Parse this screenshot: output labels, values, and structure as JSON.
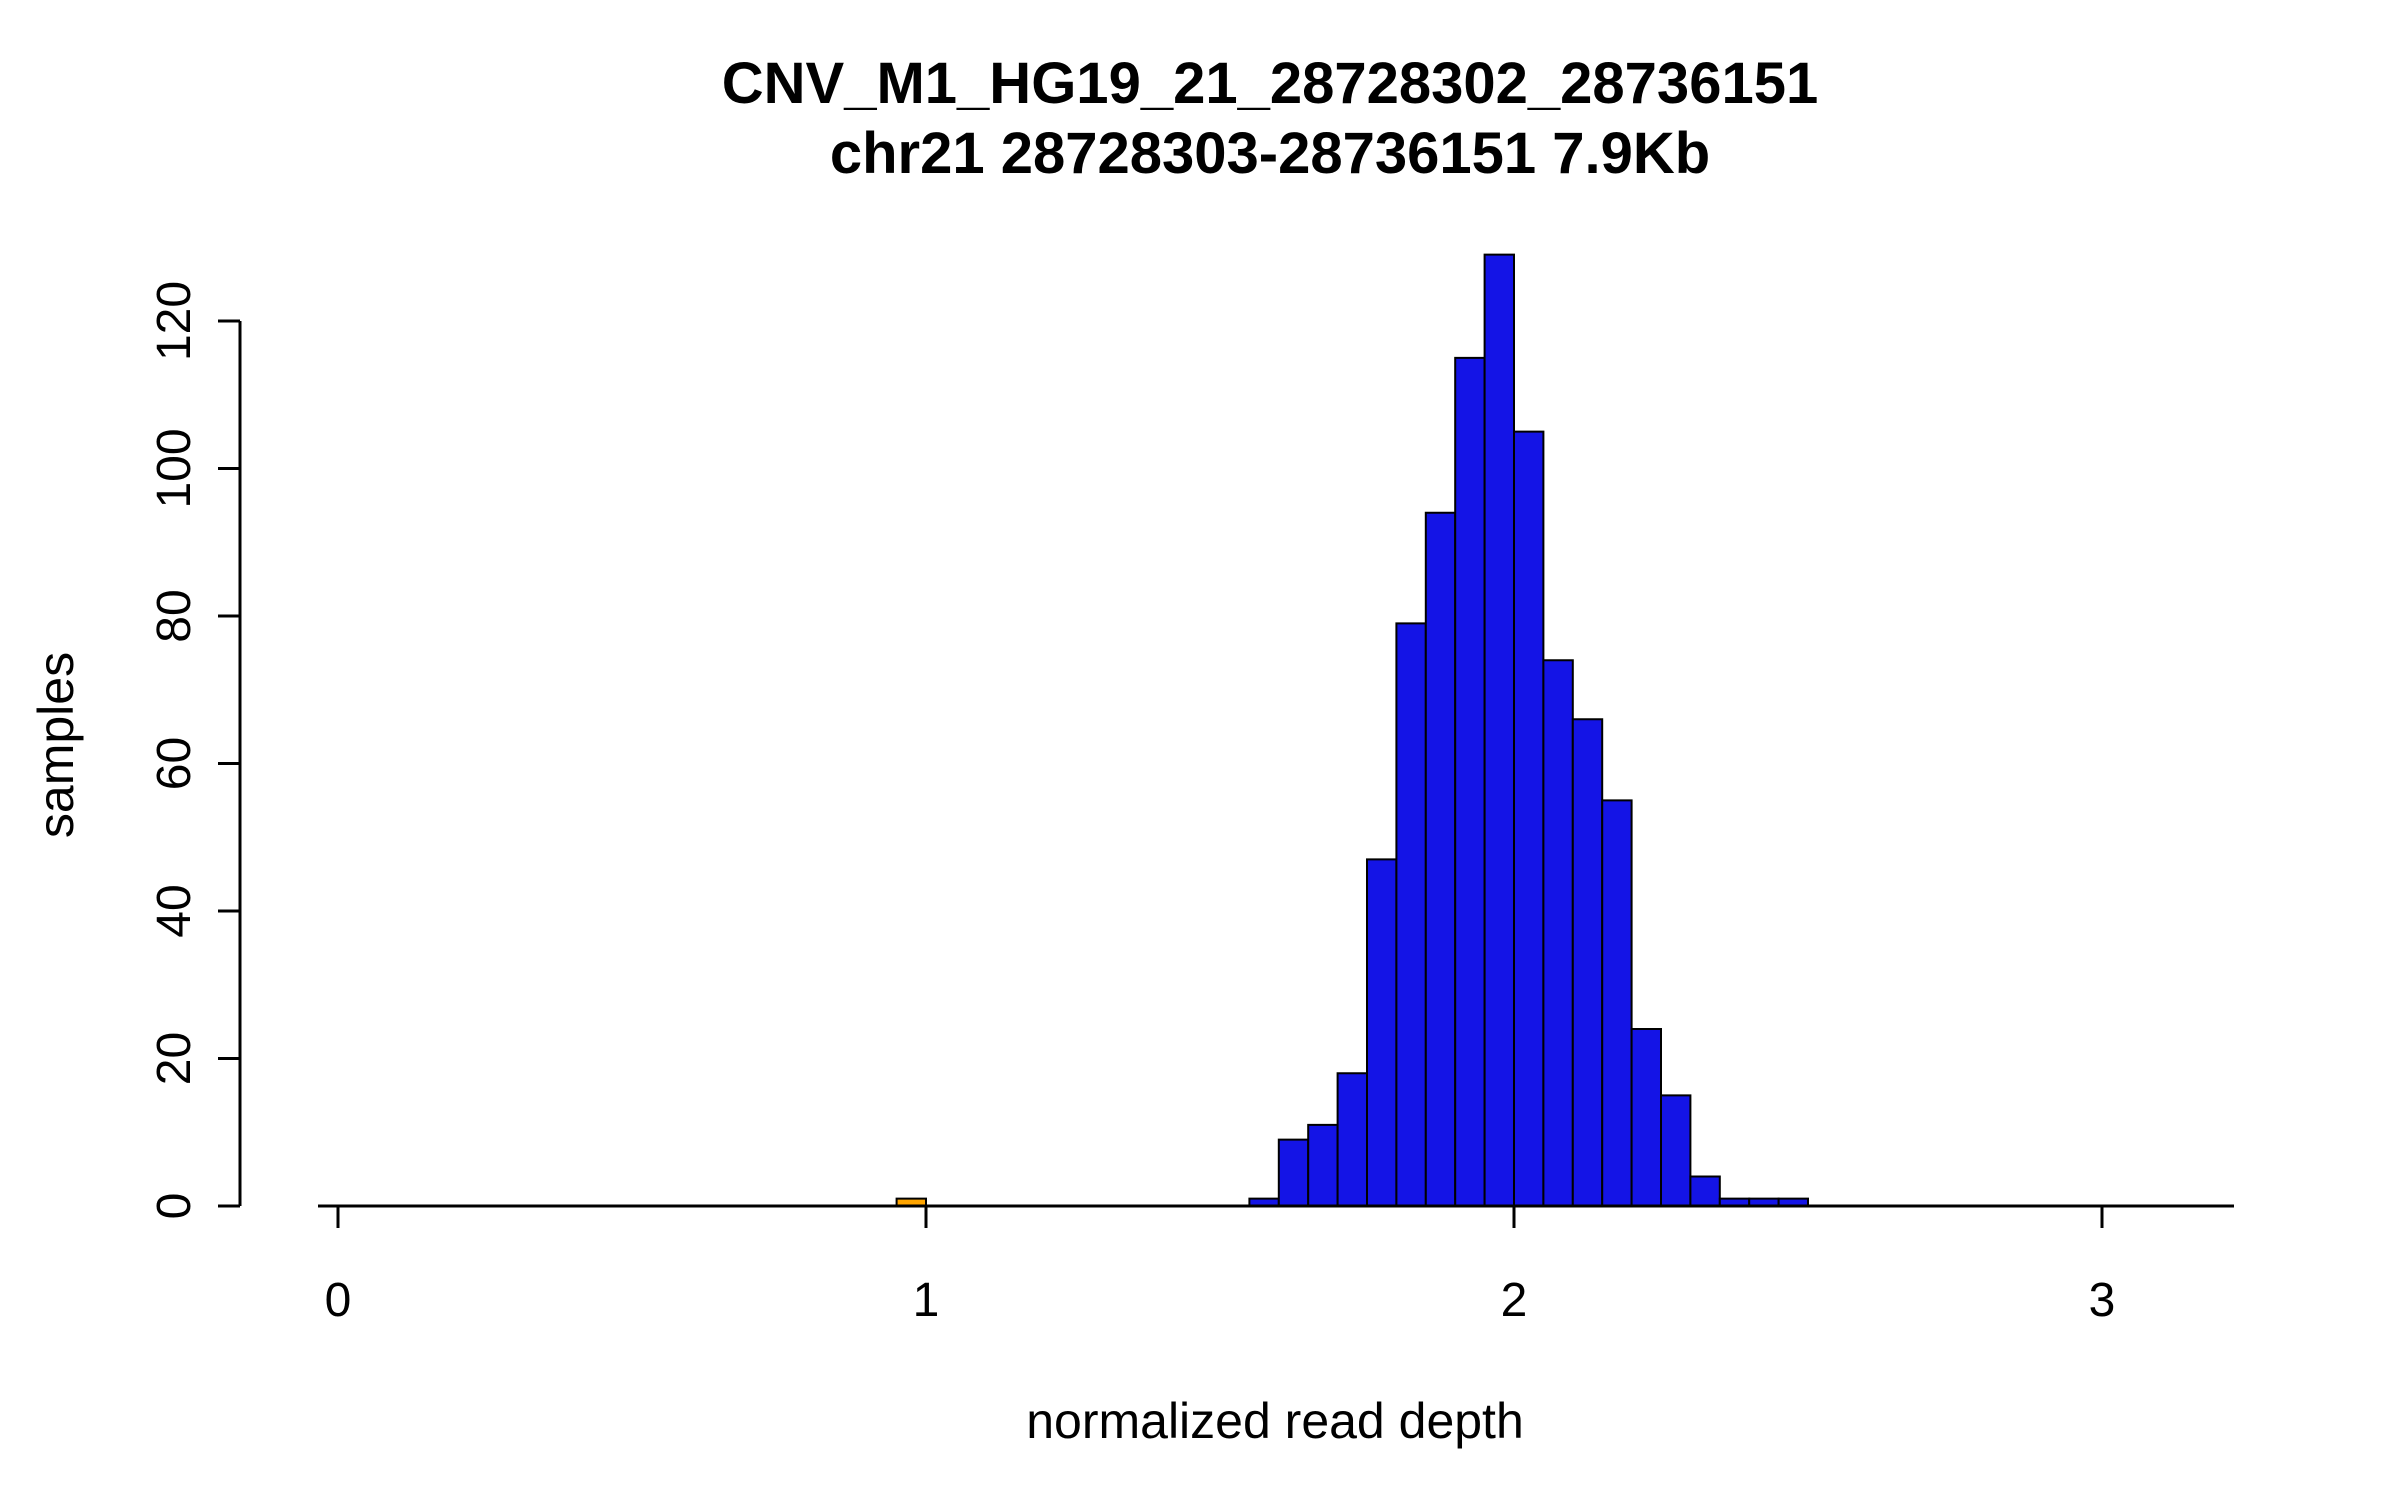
{
  "chart_data": {
    "type": "bar",
    "chart_kind": "histogram",
    "title": "CNV_M1_HG19_21_28728302_28736151",
    "subtitle": "chr21 28728303-28736151 7.9Kb",
    "xlabel": "normalized read depth",
    "ylabel": "samples",
    "x_ticks": [
      0,
      1,
      2,
      3
    ],
    "y_ticks": [
      0,
      20,
      40,
      60,
      80,
      100,
      120
    ],
    "xlim": [
      -0.05,
      3.25
    ],
    "ylim": [
      0,
      130
    ],
    "bin_width": 0.05,
    "grid": false,
    "legend": "none",
    "colors": {
      "bar_fill": "#1414E6",
      "bar_stroke": "#000000",
      "highlight_fill": "#FFA500",
      "axis": "#000000",
      "background": "#FFFFFF"
    },
    "bars": [
      {
        "bin_start": 0.95,
        "count": 1,
        "fill": "highlight_fill"
      },
      {
        "bin_start": 1.55,
        "count": 1,
        "fill": "bar_fill"
      },
      {
        "bin_start": 1.6,
        "count": 9,
        "fill": "bar_fill"
      },
      {
        "bin_start": 1.65,
        "count": 11,
        "fill": "bar_fill"
      },
      {
        "bin_start": 1.7,
        "count": 18,
        "fill": "bar_fill"
      },
      {
        "bin_start": 1.75,
        "count": 47,
        "fill": "bar_fill"
      },
      {
        "bin_start": 1.8,
        "count": 79,
        "fill": "bar_fill"
      },
      {
        "bin_start": 1.85,
        "count": 94,
        "fill": "bar_fill"
      },
      {
        "bin_start": 1.9,
        "count": 115,
        "fill": "bar_fill"
      },
      {
        "bin_start": 1.95,
        "count": 129,
        "fill": "bar_fill"
      },
      {
        "bin_start": 2.0,
        "count": 105,
        "fill": "bar_fill"
      },
      {
        "bin_start": 2.05,
        "count": 74,
        "fill": "bar_fill"
      },
      {
        "bin_start": 2.1,
        "count": 66,
        "fill": "bar_fill"
      },
      {
        "bin_start": 2.15,
        "count": 55,
        "fill": "bar_fill"
      },
      {
        "bin_start": 2.2,
        "count": 24,
        "fill": "bar_fill"
      },
      {
        "bin_start": 2.25,
        "count": 15,
        "fill": "bar_fill"
      },
      {
        "bin_start": 2.3,
        "count": 4,
        "fill": "bar_fill"
      },
      {
        "bin_start": 2.35,
        "count": 1,
        "fill": "bar_fill"
      },
      {
        "bin_start": 2.4,
        "count": 1,
        "fill": "bar_fill"
      },
      {
        "bin_start": 2.45,
        "count": 1,
        "fill": "bar_fill"
      }
    ]
  }
}
